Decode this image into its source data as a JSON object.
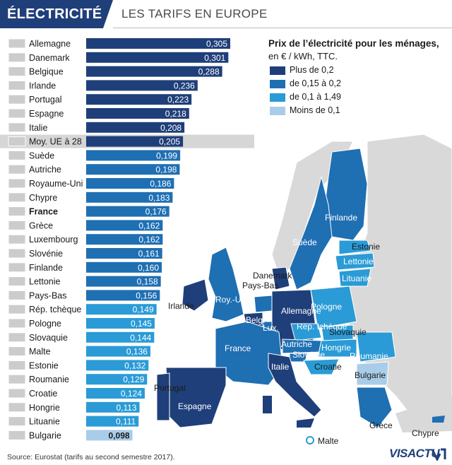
{
  "header": {
    "title": "ÉLECTRICITÉ",
    "subtitle": "LES TARIFS EN EUROPE"
  },
  "legend": {
    "title": "Prix de l’électricité pour les ménages,",
    "subtitle": "en € / kWh, TTC.",
    "items": [
      {
        "label": "Plus de 0,2",
        "color": "#1f3f7a"
      },
      {
        "label": "de 0,15 à 0,2",
        "color": "#1f6fb3"
      },
      {
        "label": "de 0,1 à 1,49",
        "color": "#2a9bd6"
      },
      {
        "label": "Moins de 0,1",
        "color": "#a9cde8"
      }
    ]
  },
  "chart_data": {
    "type": "bar",
    "orientation": "horizontal",
    "categories": [
      "Allemagne",
      "Danemark",
      "Belgique",
      "Irlande",
      "Portugal",
      "Espagne",
      "Italie",
      "Moy. UE à 28",
      "Suède",
      "Autriche",
      "Royaume-Uni",
      "Chypre",
      "France",
      "Grèce",
      "Luxembourg",
      "Slovénie",
      "Finlande",
      "Lettonie",
      "Pays-Bas",
      "Rép. tchèque",
      "Pologne",
      "Slovaquie",
      "Malte",
      "Estonie",
      "Roumanie",
      "Croatie",
      "Hongrie",
      "Lituanie",
      "Bulgarie"
    ],
    "value_labels": [
      "0,305",
      "0,301",
      "0,288",
      "0,236",
      "0,223",
      "0,218",
      "0,208",
      "0,205",
      "0,199",
      "0,198",
      "0,186",
      "0,183",
      "0,176",
      "0,162",
      "0,162",
      "0,161",
      "0,160",
      "0,158",
      "0,156",
      "0,149",
      "0,145",
      "0,144",
      "0,136",
      "0,132",
      "0,129",
      "0,124",
      "0,113",
      "0,111",
      "0,098"
    ],
    "values": [
      0.305,
      0.301,
      0.288,
      0.236,
      0.223,
      0.218,
      0.208,
      0.205,
      0.199,
      0.198,
      0.186,
      0.183,
      0.176,
      0.162,
      0.162,
      0.161,
      0.16,
      0.158,
      0.156,
      0.149,
      0.145,
      0.144,
      0.136,
      0.132,
      0.129,
      0.124,
      0.113,
      0.111,
      0.098
    ],
    "highlight": [
      "Moy. UE à 28",
      "France"
    ],
    "flag_icons": [
      "flag-germany-icon",
      "flag-denmark-icon",
      "flag-belgium-icon",
      "flag-ireland-icon",
      "flag-portugal-icon",
      "flag-spain-icon",
      "flag-italy-icon",
      "flag-eu-icon",
      "flag-sweden-icon",
      "flag-austria-icon",
      "flag-uk-icon",
      "flag-cyprus-icon",
      "flag-france-icon",
      "flag-greece-icon",
      "flag-luxembourg-icon",
      "flag-slovenia-icon",
      "flag-finland-icon",
      "flag-latvia-icon",
      "flag-netherlands-icon",
      "flag-czechia-icon",
      "flag-poland-icon",
      "flag-slovakia-icon",
      "flag-malta-icon",
      "flag-estonia-icon",
      "flag-romania-icon",
      "flag-croatia-icon",
      "flag-hungary-icon",
      "flag-lithuania-icon",
      "flag-bulgaria-icon"
    ],
    "xlim": [
      0,
      0.305
    ]
  },
  "map": {
    "labels": [
      "Finlande",
      "Suède",
      "Estonie",
      "Lettonie",
      "Lituanie",
      "Danemark",
      "Pays-Bas",
      "Irlande",
      "Roy.-Uni",
      "Allemagne",
      "Pologne",
      "Belg.",
      "Lux.",
      "Rép. tchèque",
      "Slovaquie",
      "France",
      "Autriche",
      "Hongrie",
      "Slovénie",
      "Roumanie",
      "Croatie",
      "Italie",
      "Bulgarie",
      "Portugal",
      "Espagne",
      "Grèce",
      "Chypre",
      "Malte"
    ]
  },
  "source": "Source: Eurostat (tarifs au second semestre 2017).",
  "logo": "VISACTU"
}
